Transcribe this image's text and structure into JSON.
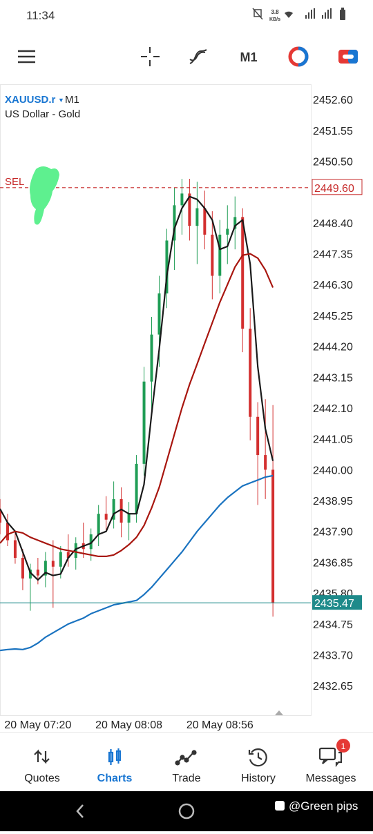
{
  "status_bar": {
    "time": "11:34",
    "speed": "3.8",
    "speed_unit": "KB/s"
  },
  "toolbar": {
    "timeframe": "M1"
  },
  "chart": {
    "type": "candlestick",
    "symbol": "XAUUSD.r",
    "timeframe": "M1",
    "description": "US Dollar - Gold",
    "up_color": "#1f9d55",
    "down_color": "#d32f2f",
    "x": [
      0,
      4,
      8,
      12,
      16,
      20,
      24,
      28,
      32,
      36,
      40,
      44,
      48,
      52,
      56,
      60,
      64,
      68,
      72,
      76,
      80,
      84,
      88,
      92,
      96,
      100,
      104,
      108,
      112,
      116,
      120,
      124,
      128,
      132,
      136,
      140,
      144
    ],
    "open": [
      2438.6,
      2438.2,
      2437.6,
      2437.0,
      2436.3,
      2436.6,
      2436.4,
      2436.9,
      2436.7,
      2437.2,
      2437.0,
      2437.5,
      2437.3,
      2437.8,
      2438.5,
      2438.3,
      2439.0,
      2438.2,
      2438.5,
      2440.2,
      2443.0,
      2444.6,
      2446.0,
      2447.8,
      2449.0,
      2449.4,
      2448.3,
      2448.9,
      2448.0,
      2446.6,
      2448.0,
      2448.2,
      2448.6,
      2444.8,
      2441.8,
      2440.5,
      2440.0
    ],
    "high": [
      2439.0,
      2438.5,
      2437.9,
      2437.3,
      2436.8,
      2437.0,
      2437.2,
      2437.6,
      2437.4,
      2437.8,
      2437.7,
      2438.2,
      2438.0,
      2438.8,
      2439.1,
      2439.6,
      2439.4,
      2438.9,
      2440.5,
      2443.5,
      2445.2,
      2446.6,
      2448.2,
      2449.6,
      2449.9,
      2449.9,
      2449.8,
      2449.5,
      2448.8,
      2448.5,
      2449.0,
      2449.3,
      2448.9,
      2445.5,
      2442.3,
      2442.4,
      2442.2
    ],
    "low": [
      2437.8,
      2437.4,
      2436.8,
      2435.9,
      2435.2,
      2436.1,
      2436.0,
      2435.3,
      2436.3,
      2436.7,
      2436.6,
      2437.0,
      2436.9,
      2437.4,
      2437.9,
      2438.0,
      2437.7,
      2437.6,
      2438.2,
      2439.8,
      2442.0,
      2443.5,
      2445.5,
      2446.8,
      2448.0,
      2447.8,
      2447.0,
      2447.5,
      2445.8,
      2446.0,
      2447.0,
      2447.5,
      2444.0,
      2441.0,
      2438.8,
      2439.0,
      2435.0
    ],
    "close": [
      2438.2,
      2437.6,
      2437.0,
      2436.3,
      2436.6,
      2436.4,
      2436.9,
      2436.7,
      2437.2,
      2437.0,
      2437.5,
      2437.3,
      2437.8,
      2438.5,
      2438.3,
      2439.0,
      2438.2,
      2438.5,
      2440.2,
      2443.0,
      2444.6,
      2446.0,
      2447.8,
      2449.0,
      2449.4,
      2448.3,
      2448.9,
      2448.0,
      2446.6,
      2448.0,
      2448.2,
      2448.6,
      2444.8,
      2441.8,
      2440.5,
      2440.0,
      2435.47
    ],
    "moving_averages": [
      {
        "color": "#1a1a1a",
        "values": [
          2438.67,
          2438.2,
          2437.9,
          2437.2,
          2436.5,
          2436.25,
          2436.5,
          2436.4,
          2436.45,
          2437.0,
          2437.3,
          2437.4,
          2437.5,
          2437.8,
          2437.9,
          2438.5,
          2438.65,
          2438.5,
          2438.5,
          2439.5,
          2441.9,
          2444.1,
          2446.6,
          2448.2,
          2448.9,
          2449.3,
          2449.2,
          2448.9,
          2448.5,
          2447.5,
          2447.6,
          2448.3,
          2448.5,
          2447.0,
          2443.5,
          2441.4,
          2440.3
        ]
      },
      {
        "color": "#a8160f",
        "values": [
          2437.5,
          2437.8,
          2437.9,
          2437.85,
          2437.7,
          2437.6,
          2437.5,
          2437.4,
          2437.3,
          2437.25,
          2437.2,
          2437.15,
          2437.1,
          2437.05,
          2437.05,
          2437.1,
          2437.25,
          2437.45,
          2437.7,
          2438.1,
          2438.7,
          2439.4,
          2440.3,
          2441.2,
          2442.1,
          2442.9,
          2443.6,
          2444.3,
          2445.0,
          2445.7,
          2446.3,
          2446.9,
          2447.3,
          2447.35,
          2447.2,
          2446.8,
          2446.2
        ]
      },
      {
        "color": "#1a73c0",
        "values": [
          2433.85,
          2433.88,
          2433.9,
          2433.88,
          2433.95,
          2434.1,
          2434.3,
          2434.45,
          2434.6,
          2434.75,
          2434.85,
          2434.95,
          2435.1,
          2435.2,
          2435.3,
          2435.4,
          2435.45,
          2435.5,
          2435.55,
          2435.75,
          2436.0,
          2436.3,
          2436.6,
          2436.9,
          2437.2,
          2437.55,
          2437.9,
          2438.2,
          2438.5,
          2438.8,
          2439.05,
          2439.25,
          2439.45,
          2439.55,
          2439.65,
          2439.75,
          2439.8
        ]
      }
    ],
    "xlim": [
      0,
      164
    ],
    "xticks": [
      {
        "value": 20,
        "label": "20 May 07:20"
      },
      {
        "value": 68,
        "label": "20 May 08:08"
      },
      {
        "value": 116,
        "label": "20 May 08:56"
      }
    ],
    "ylim": [
      2431.62,
      2453.12
    ],
    "yticks": [
      {
        "value": 2452.6,
        "label": "2452.60"
      },
      {
        "value": 2451.55,
        "label": "2451.55"
      },
      {
        "value": 2450.5,
        "label": "2450.50"
      },
      {
        "value": 2448.4,
        "label": "2448.40"
      },
      {
        "value": 2447.35,
        "label": "2447.35"
      },
      {
        "value": 2446.3,
        "label": "2446.30"
      },
      {
        "value": 2445.25,
        "label": "2445.25"
      },
      {
        "value": 2444.2,
        "label": "2444.20"
      },
      {
        "value": 2443.15,
        "label": "2443.15"
      },
      {
        "value": 2442.1,
        "label": "2442.10"
      },
      {
        "value": 2441.05,
        "label": "2441.05"
      },
      {
        "value": 2440,
        "label": "2440.00"
      },
      {
        "value": 2438.95,
        "label": "2438.95"
      },
      {
        "value": 2437.9,
        "label": "2437.90"
      },
      {
        "value": 2436.85,
        "label": "2436.85"
      },
      {
        "value": 2435.8,
        "label": "2435.80"
      },
      {
        "value": 2434.75,
        "label": "2434.75"
      },
      {
        "value": 2433.7,
        "label": "2433.70"
      },
      {
        "value": 2432.65,
        "label": "2432.65"
      }
    ],
    "order": {
      "label": "SEL",
      "price": {
        "value": 2449.6,
        "label": "2449.60"
      },
      "color": "#c62828"
    },
    "last_price": {
      "value": 2435.47,
      "label": "2435.47",
      "color": "#1e8a8a"
    }
  },
  "nav": {
    "items": [
      "Quotes",
      "Charts",
      "Trade",
      "History",
      "Messages"
    ],
    "active": 1,
    "badge": "1"
  },
  "watermark": "@Green pips"
}
